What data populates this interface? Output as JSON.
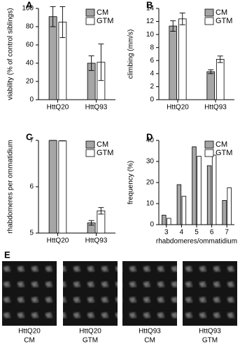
{
  "chart_data": [
    {
      "type": "bar",
      "label": "A",
      "ylabel": "viability (% of control siblings)",
      "categories": [
        "HttQ20",
        "HttQ93"
      ],
      "series": [
        {
          "name": "CM",
          "color": "#a6a6a6",
          "values": [
            91,
            40
          ],
          "errors": [
            11,
            8
          ]
        },
        {
          "name": "GTM",
          "color": "#ffffff",
          "values": [
            85,
            41
          ],
          "errors": [
            17,
            20
          ]
        }
      ],
      "ylim": [
        0,
        100
      ],
      "yticks": [
        0,
        20,
        40,
        60,
        80,
        100
      ],
      "legend": "upper right"
    },
    {
      "type": "bar",
      "label": "B",
      "ylabel": "climbing (mm/s)",
      "categories": [
        "HttQ20",
        "HttQ93"
      ],
      "series": [
        {
          "name": "CM",
          "color": "#a6a6a6",
          "values": [
            11.3,
            4.3
          ],
          "errors": [
            0.8,
            0.3
          ]
        },
        {
          "name": "GTM",
          "color": "#ffffff",
          "values": [
            12.4,
            6.2
          ],
          "errors": [
            0.9,
            0.5
          ]
        }
      ],
      "ylim": [
        0,
        14
      ],
      "yticks": [
        0,
        2,
        4,
        6,
        8,
        10,
        12,
        14
      ],
      "legend": "upper right"
    },
    {
      "type": "bar",
      "label": "C",
      "ylabel": "rhabdomeres per ommatidium",
      "categories": [
        "HttQ20",
        "HttQ93"
      ],
      "series": [
        {
          "name": "CM",
          "color": "#a6a6a6",
          "values": [
            7.0,
            5.22
          ],
          "errors": [
            0,
            0.05
          ]
        },
        {
          "name": "GTM",
          "color": "#ffffff",
          "values": [
            6.99,
            5.48
          ],
          "errors": [
            0,
            0.07
          ]
        }
      ],
      "ylim": [
        5,
        7
      ],
      "yticks": [
        5,
        6,
        7
      ],
      "legend": "upper right"
    },
    {
      "type": "bar",
      "label": "D",
      "ylabel": "frequency (%)",
      "xlabel": "rhabdomeres/ommatidium",
      "categories": [
        "3",
        "4",
        "5",
        "6",
        "7"
      ],
      "series": [
        {
          "name": "CM",
          "color": "#a6a6a6",
          "values": [
            4.5,
            19,
            37,
            28,
            11.5
          ]
        },
        {
          "name": "GTM",
          "color": "#ffffff",
          "values": [
            3,
            13.5,
            32.5,
            33,
            17.5
          ]
        }
      ],
      "ylim": [
        0,
        40
      ],
      "yticks": [
        0,
        10,
        20,
        30,
        40
      ],
      "legend": "upper right"
    }
  ],
  "panel_e": {
    "label": "E",
    "captions": [
      [
        "HttQ20",
        "CM"
      ],
      [
        "HttQ20",
        "GTM"
      ],
      [
        "HttQ93",
        "CM"
      ],
      [
        "HttQ93",
        "GTM"
      ]
    ]
  }
}
